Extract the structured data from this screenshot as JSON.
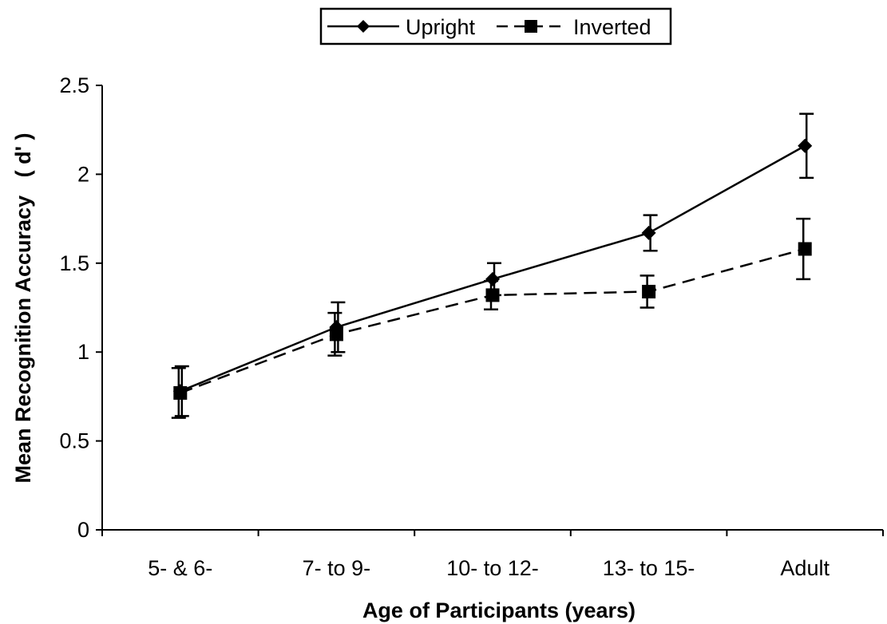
{
  "chart_data": {
    "type": "line",
    "xlabel": "Age of Participants (years)",
    "ylabel": "Mean Recognition Accuracy   ( d' )",
    "categories": [
      "5- & 6-",
      "7- to 9-",
      "10- to 12-",
      "13- to 15-",
      "Adult"
    ],
    "ylim": [
      0,
      2.5
    ],
    "yticks": [
      "0",
      "0.5",
      "1",
      "1.5",
      "2",
      "2.5"
    ],
    "grid": false,
    "legend_position": "top-center",
    "series": [
      {
        "name": "Upright",
        "marker": "diamond",
        "line": "solid",
        "values": [
          0.78,
          1.14,
          1.41,
          1.67,
          2.16
        ],
        "errors": [
          0.14,
          0.14,
          0.09,
          0.1,
          0.18
        ]
      },
      {
        "name": "Inverted",
        "marker": "square",
        "line": "dashed",
        "values": [
          0.77,
          1.1,
          1.32,
          1.34,
          1.58
        ],
        "errors": [
          0.14,
          0.12,
          0.08,
          0.09,
          0.17
        ]
      }
    ]
  }
}
